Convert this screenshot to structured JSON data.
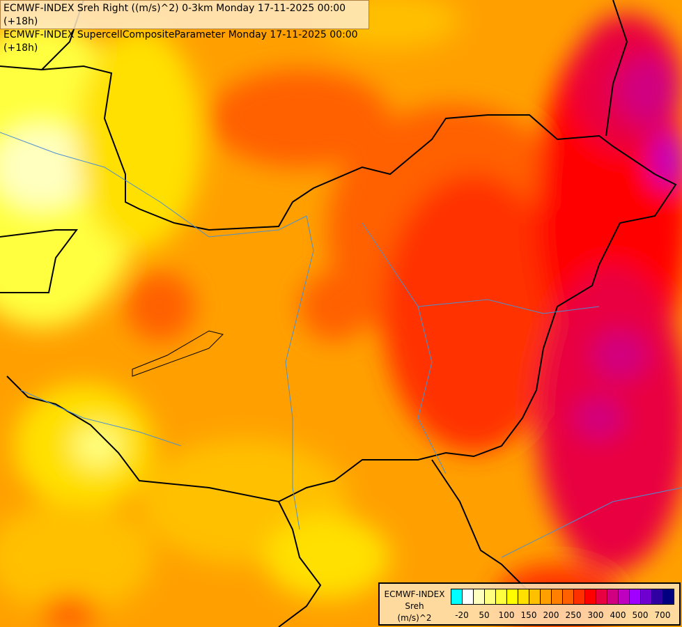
{
  "title": {
    "line1": "ECMWF-INDEX Sreh Right ((m/s)^2) 0-3km Monday 17-11-2025 00:00 (+18h)",
    "line2": "ECMWF-INDEX SupercellCompositeParameter Monday 17-11-2025 00:00 (+18h)"
  },
  "legend": {
    "model": "ECMWF-INDEX",
    "variable": "Sreh",
    "unit": "(m/s)^2",
    "colors": [
      "#00ffff",
      "#ffffff",
      "#ffffc0",
      "#ffff80",
      "#ffff40",
      "#ffff00",
      "#ffe000",
      "#ffc000",
      "#ffa000",
      "#ff8000",
      "#ff6000",
      "#ff3000",
      "#ff0000",
      "#e80040",
      "#d00080",
      "#c000c0",
      "#a000ff",
      "#7000d0",
      "#3000a0",
      "#000080"
    ],
    "tick_labels": [
      "-20",
      "50",
      "100",
      "150",
      "200",
      "250",
      "300",
      "400",
      "500",
      "700"
    ]
  }
}
